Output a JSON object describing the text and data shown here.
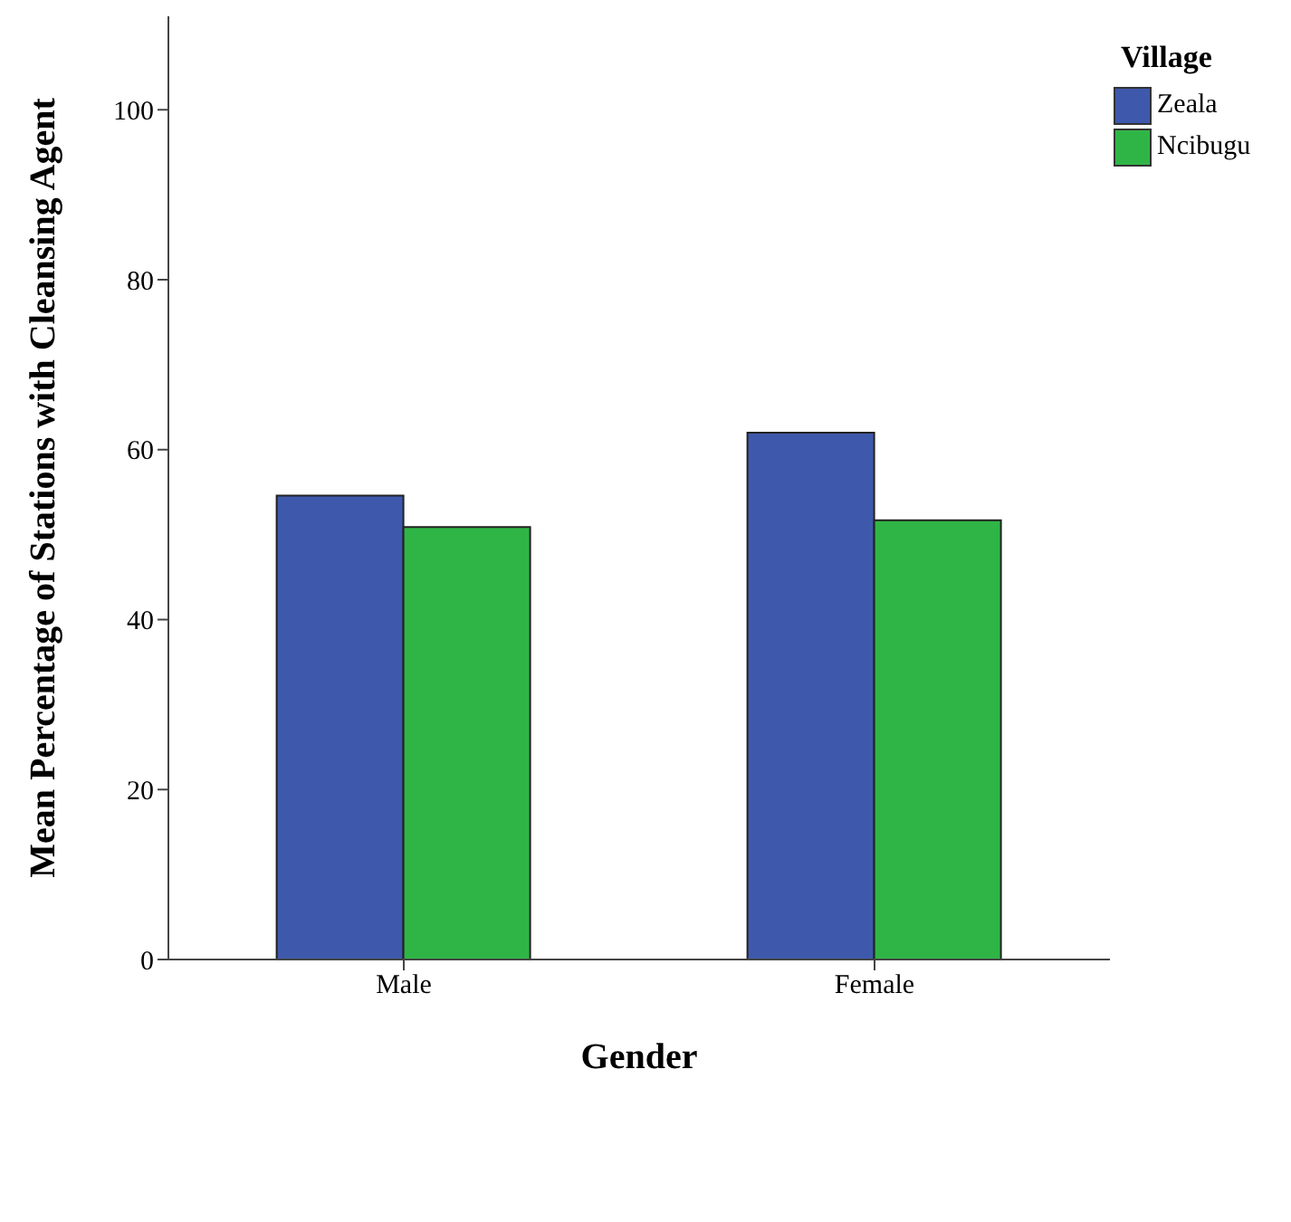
{
  "chart_data": {
    "type": "bar",
    "xlabel": "Gender",
    "ylabel": "Mean Percentage of Stations with Cleansing Agent",
    "legend_title": "Village",
    "categories": [
      "Male",
      "Female"
    ],
    "series": [
      {
        "name": "Zeala",
        "color": "#3e58ac",
        "values": [
          54.6,
          62.0
        ]
      },
      {
        "name": "Ncibugu",
        "color": "#2fb546",
        "values": [
          50.9,
          51.7
        ]
      }
    ],
    "ylim": [
      0,
      111
    ],
    "yticks": [
      0,
      20,
      40,
      60,
      80,
      100
    ],
    "grid": false,
    "legend": "top right"
  }
}
